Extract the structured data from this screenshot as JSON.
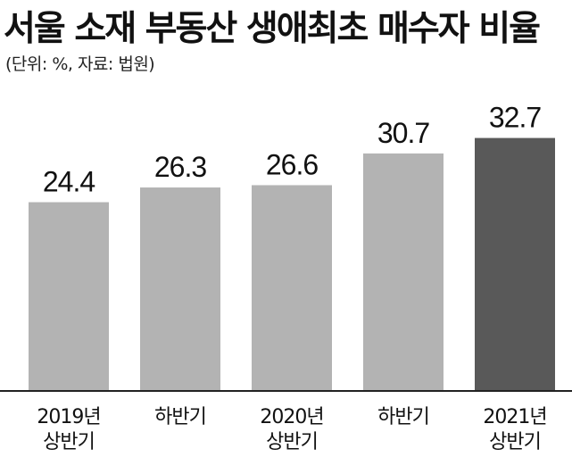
{
  "title": "서울 소재 부동산 생애최초 매수자 비율",
  "subtitle": "(단위: %, 자료: 법원)",
  "chart_data": {
    "type": "bar",
    "categories": [
      [
        "2019년",
        "상반기"
      ],
      [
        "하반기"
      ],
      [
        "2020년",
        "상반기"
      ],
      [
        "하반기"
      ],
      [
        "2021년",
        "상반기"
      ]
    ],
    "values": [
      24.4,
      26.3,
      26.6,
      30.7,
      32.7
    ],
    "value_labels": [
      "24.4",
      "26.3",
      "26.6",
      "30.7",
      "32.7"
    ],
    "grid": false,
    "colors": {
      "bar": "#b3b3b3",
      "highlight_bar": "#595959",
      "highlight_index": 4,
      "axis": "#222222"
    }
  }
}
